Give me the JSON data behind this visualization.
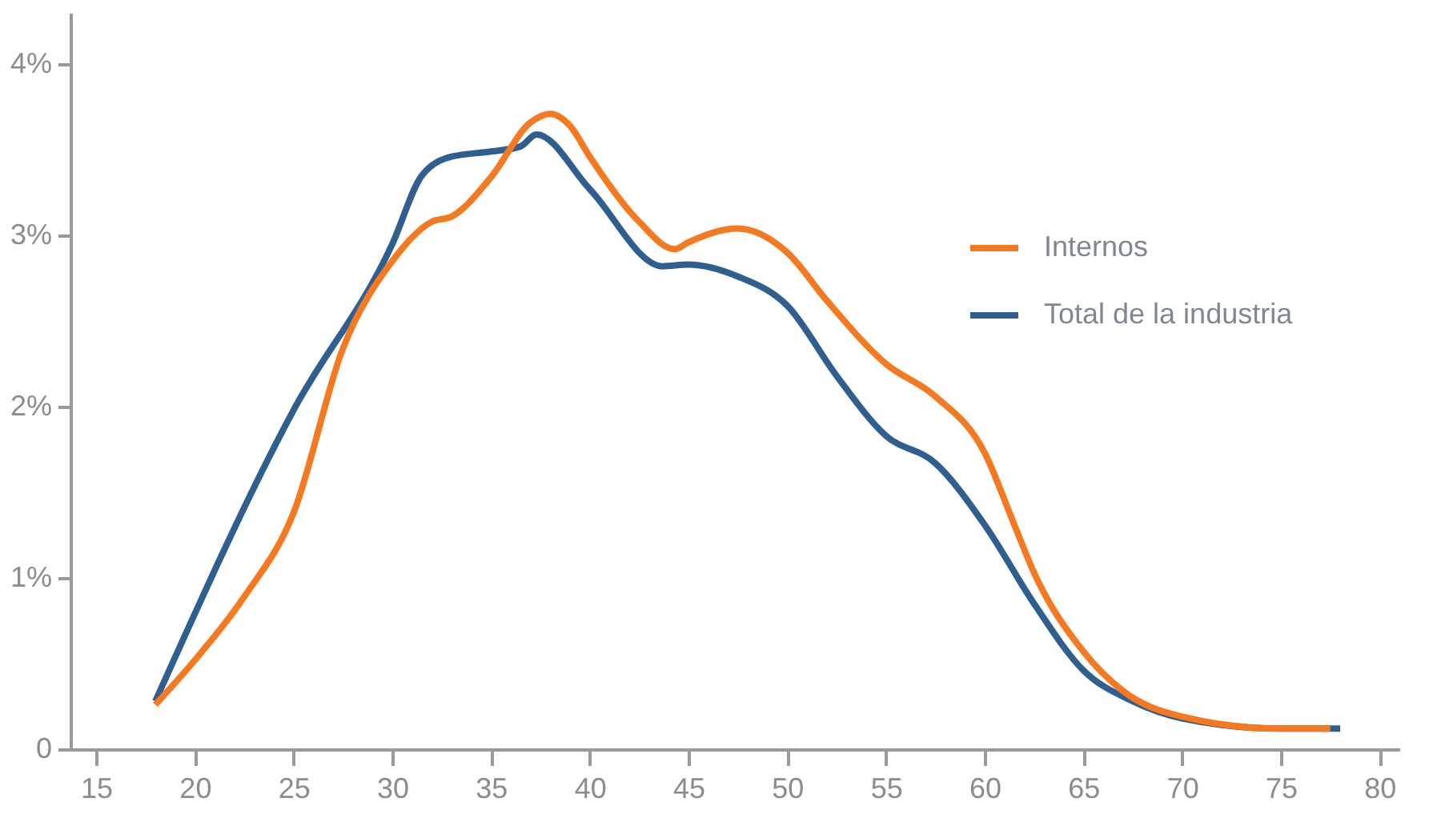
{
  "chart_data": {
    "type": "line",
    "xlim": [
      13.7,
      81
    ],
    "xticks": [
      15,
      20,
      25,
      30,
      35,
      40,
      45,
      50,
      55,
      60,
      65,
      70,
      75,
      80
    ],
    "ylim": [
      0,
      4.3
    ],
    "yticks": [
      0,
      {
        "value": 1,
        "label": "1%"
      },
      {
        "value": 2,
        "label": "2%"
      },
      {
        "value": 3,
        "label": "3%"
      },
      {
        "value": 4,
        "label": "4%"
      }
    ],
    "grid": false,
    "legend": "top right",
    "marker": "none",
    "line_style": "solid",
    "series": [
      {
        "name": "Internos",
        "color": "#f47920",
        "x": [
          18,
          20,
          22.5,
          25,
          27.5,
          30,
          32,
          33,
          35,
          37,
          38,
          39,
          40,
          42.5,
          44.3,
          45,
          47.5,
          50,
          52,
          55,
          57.5,
          60,
          61.5,
          62.5,
          65,
          67,
          70,
          75,
          77.5
        ],
        "values": [
          0.26,
          0.52,
          0.89,
          1.38,
          2.34,
          2.85,
          3.08,
          3.11,
          3.34,
          3.66,
          3.71,
          3.64,
          3.46,
          3.08,
          2.92,
          2.96,
          3.04,
          2.9,
          2.62,
          2.25,
          2.06,
          1.73,
          1.31,
          1.03,
          0.57,
          0.34,
          0.19,
          0.12,
          0.12
        ]
      },
      {
        "name": "Total de la industria",
        "color": "#2f5f8f",
        "x": [
          18,
          25,
          30,
          31.5,
          33,
          35,
          36.5,
          37.3,
          40,
          43.7,
          45,
          47.5,
          50,
          52.5,
          55,
          57.5,
          60,
          62.5,
          65,
          67.5,
          70,
          75,
          78
        ],
        "values": [
          0.28,
          1.98,
          2.95,
          3.35,
          3.46,
          3.49,
          3.52,
          3.59,
          3.27,
          2.82,
          2.83,
          2.76,
          2.59,
          2.18,
          1.83,
          1.67,
          1.31,
          0.85,
          0.46,
          0.28,
          0.18,
          0.12,
          0.12
        ]
      }
    ]
  }
}
